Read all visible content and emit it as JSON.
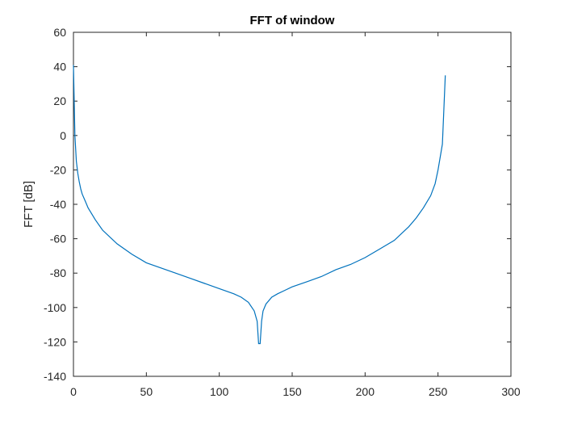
{
  "chart_data": {
    "type": "line",
    "title": "FFT of window",
    "xlabel": "",
    "ylabel": "FFT [dB]",
    "xlim": [
      0,
      300
    ],
    "ylim": [
      -140,
      60
    ],
    "xticks": [
      0,
      50,
      100,
      150,
      200,
      250,
      300
    ],
    "yticks": [
      -140,
      -120,
      -100,
      -80,
      -60,
      -40,
      -20,
      0,
      20,
      40,
      60
    ],
    "grid": false,
    "colors": {
      "series": "#0072BD",
      "axes": "#262626",
      "background": "#ffffff"
    },
    "series": [
      {
        "x": [
          0,
          1,
          2,
          3,
          4,
          5,
          6,
          8,
          10,
          15,
          20,
          30,
          40,
          50,
          60,
          70,
          80,
          90,
          100,
          110,
          115,
          120,
          124,
          126,
          127,
          128,
          129,
          130,
          132,
          136,
          140,
          145,
          150,
          160,
          170,
          180,
          190,
          200,
          210,
          220,
          230,
          235,
          240,
          245,
          248,
          250,
          252,
          253,
          254,
          255
        ],
        "y": [
          41,
          0,
          -15,
          -22,
          -27,
          -31,
          -34,
          -38,
          -42,
          -49,
          -55,
          -63,
          -69,
          -74,
          -77,
          -80,
          -83,
          -86,
          -89,
          -92,
          -94,
          -97,
          -102,
          -108,
          -121,
          -121,
          -108,
          -102,
          -98,
          -94,
          -92,
          -90,
          -88,
          -85,
          -82,
          -78,
          -75,
          -71,
          -66,
          -61,
          -53,
          -48,
          -42,
          -35,
          -28,
          -20,
          -10,
          -5,
          15,
          35
        ]
      }
    ]
  }
}
